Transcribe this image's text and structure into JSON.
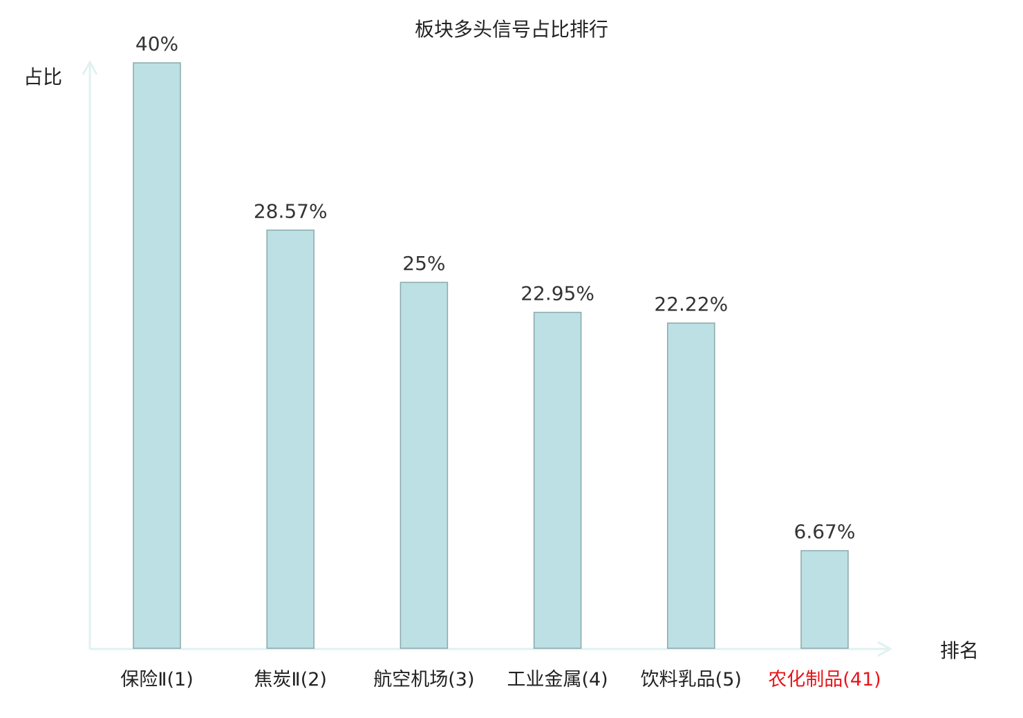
{
  "chart_data": {
    "type": "bar",
    "title": "板块多头信号占比排行",
    "xlabel": "排名",
    "ylabel": "占比",
    "categories": [
      "保险Ⅱ(1)",
      "焦炭Ⅱ(2)",
      "航空机场(3)",
      "工业金属(4)",
      "饮料乳品(5)",
      "农化制品(41)"
    ],
    "values": [
      40,
      28.57,
      25,
      22.95,
      22.22,
      6.67
    ],
    "data_labels": [
      "40%",
      "28.57%",
      "25%",
      "22.95%",
      "22.22%",
      "6.67%"
    ],
    "ylim": [
      0,
      40
    ],
    "grid": false,
    "colors": {
      "bar": "#bce0e3",
      "bar_edge": "#8aa8aa",
      "axis": "#dff2f0",
      "highlight_label": "#e8141a",
      "text": "#222222",
      "value_label": "#333333"
    },
    "highlight_index": 5
  }
}
